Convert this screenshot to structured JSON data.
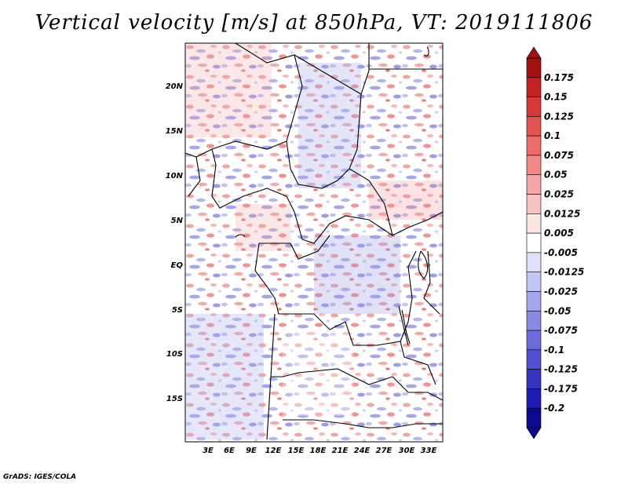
{
  "title": "Vertical velocity [m/s] at 850hPa, VT: 2019111806",
  "credit": "GrADS: IGES/COLA",
  "map": {
    "lat_labels": [
      "20N",
      "15N",
      "10N",
      "5N",
      "EQ",
      "5S",
      "10S",
      "15S"
    ],
    "lon_labels": [
      "3E",
      "6E",
      "9E",
      "12E",
      "15E",
      "18E",
      "21E",
      "24E",
      "27E",
      "30E",
      "33E"
    ],
    "field": "vertical velocity, mixed positive (red) and negative (blue) speckle pattern",
    "colors": {
      "background_land": "#ffffff",
      "positive": "#e8595a",
      "negative": "#6a6ae0",
      "boundaries": "#000000"
    }
  },
  "colorbar": {
    "levels": [
      "0.175",
      "0.15",
      "0.125",
      "0.1",
      "0.075",
      "0.05",
      "0.025",
      "0.0125",
      "0.005",
      "-0.005",
      "-0.0125",
      "-0.025",
      "-0.05",
      "-0.075",
      "-0.1",
      "-0.125",
      "-0.175",
      "-0.2"
    ],
    "colors": [
      "#a01010",
      "#c42222",
      "#d83a3a",
      "#e45252",
      "#ec6c6c",
      "#f28888",
      "#f6a6a6",
      "#f9c4c4",
      "#fde4e4",
      "#ffffff",
      "#e0e0fa",
      "#c4c4f4",
      "#a6a6ee",
      "#8a8ae6",
      "#6c6cdc",
      "#5050d2",
      "#3434c2",
      "#1c1cb0",
      "#0a0a90"
    ],
    "top_arrow_color": "#a01010",
    "bottom_arrow_color": "#0a0a90"
  }
}
